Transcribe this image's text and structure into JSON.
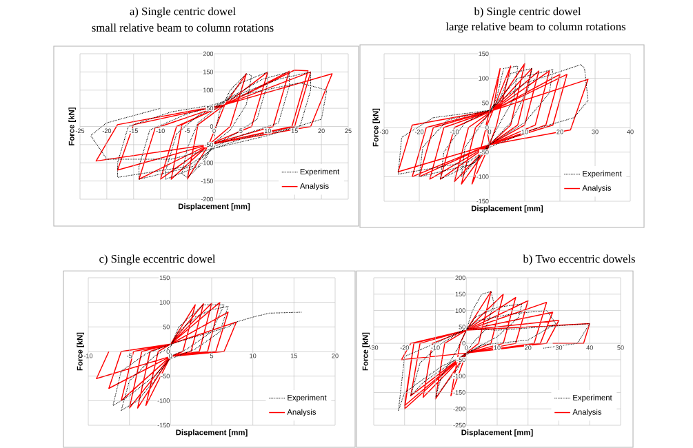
{
  "chart_data": [
    {
      "type": "line",
      "title": "a) Single centric dowel",
      "subtitle": "small relative beam to column rotations",
      "xlabel": "Displacement [mm]",
      "ylabel": "Force [kN]",
      "xlim": [
        -25,
        25
      ],
      "ylim": [
        -200,
        200
      ],
      "xticks": [
        -25,
        -20,
        -15,
        -10,
        -5,
        0,
        5,
        10,
        15,
        20,
        25
      ],
      "yticks": [
        -200,
        -150,
        -100,
        -50,
        0,
        50,
        100,
        150,
        200
      ],
      "grid": true,
      "legend": "bottom right",
      "series": [
        {
          "name": "Experiment",
          "color": "#000000",
          "line_style": "dotted",
          "x": [
            0,
            1,
            3,
            6,
            7,
            6,
            3,
            0,
            -2,
            -5,
            -6,
            -5,
            -3,
            0,
            2,
            5,
            10,
            10,
            8,
            4,
            0,
            -3,
            -9,
            -9,
            -7,
            -3,
            0,
            3,
            9,
            14,
            14,
            12,
            5,
            0,
            -4,
            -14,
            -14,
            -12,
            -5,
            0,
            4,
            12,
            18,
            18,
            16,
            6,
            0,
            -5,
            -18,
            -18,
            -16,
            -8,
            0,
            6,
            16,
            21,
            20,
            10,
            0,
            -8,
            -20,
            -23,
            -20,
            -10
          ],
          "values": [
            -30,
            40,
            100,
            145,
            140,
            60,
            -10,
            -45,
            -100,
            -140,
            -130,
            -60,
            10,
            45,
            70,
            120,
            150,
            120,
            20,
            -20,
            -50,
            -110,
            -145,
            -120,
            -20,
            30,
            50,
            80,
            130,
            150,
            110,
            10,
            -25,
            -55,
            -110,
            -145,
            -110,
            -10,
            35,
            55,
            85,
            130,
            150,
            100,
            0,
            -30,
            -60,
            -110,
            -140,
            -100,
            0,
            40,
            60,
            90,
            120,
            100,
            20,
            -25,
            -60,
            -90,
            -90,
            -25,
            10,
            50
          ]
        },
        {
          "name": "Analysis",
          "color": "#ff0000",
          "line_style": "solid",
          "x": [
            -1,
            2,
            6,
            3,
            -1,
            -5,
            -3,
            2,
            10,
            7,
            -1,
            -8,
            -6,
            2,
            14,
            11,
            -1,
            -10,
            -7,
            2,
            15,
            17.5,
            14.5,
            -1,
            -14,
            -11,
            2,
            18,
            15,
            -1,
            -18,
            -15,
            2,
            22,
            18,
            -1,
            -22,
            -18,
            2
          ],
          "values": [
            -50,
            60,
            145,
            0,
            -50,
            -145,
            5,
            60,
            150,
            0,
            -50,
            -145,
            5,
            60,
            152,
            0,
            -50,
            -145,
            0,
            60,
            155,
            153,
            0,
            -50,
            -145,
            -5,
            60,
            150,
            0,
            -50,
            -120,
            5,
            60,
            145,
            0,
            -50,
            -95,
            5,
            60
          ]
        }
      ]
    },
    {
      "type": "line",
      "title": "b) Single centric dowel",
      "subtitle": "large relative beam to column rotations",
      "xlabel": "Displacement [mm]",
      "ylabel": "Force [kN]",
      "xlim": [
        -30,
        40
      ],
      "ylim": [
        -150,
        150
      ],
      "xticks": [
        -30,
        -20,
        -10,
        0,
        10,
        20,
        30,
        40
      ],
      "yticks": [
        -150,
        -100,
        -50,
        0,
        50,
        100,
        150
      ],
      "grid": true,
      "legend": "bottom right",
      "series": [
        {
          "name": "Experiment",
          "color": "#000000",
          "line_style": "dotted",
          "x": [
            0,
            2,
            4,
            8,
            7,
            3,
            0,
            -3,
            -8,
            -7,
            -3,
            0,
            3,
            6,
            12,
            11,
            6,
            0,
            -4,
            -14,
            -13,
            -7,
            0,
            3,
            8,
            18,
            17,
            10,
            0,
            -5,
            -20,
            -19,
            -12,
            0,
            4,
            10,
            26,
            27,
            28,
            24,
            12,
            0,
            -6,
            -26,
            -25,
            -16,
            0
          ],
          "values": [
            30,
            60,
            120,
            125,
            60,
            10,
            -30,
            -60,
            -100,
            -40,
            0,
            30,
            60,
            110,
            120,
            80,
            10,
            -35,
            -70,
            -105,
            -50,
            10,
            35,
            60,
            100,
            118,
            70,
            10,
            -35,
            -75,
            -100,
            -40,
            15,
            35,
            60,
            90,
            128,
            120,
            55,
            20,
            -5,
            -40,
            -70,
            -95,
            -20,
            20,
            35
          ]
        },
        {
          "name": "Analysis",
          "color": "#ff0000",
          "line_style": "solid",
          "x": [
            1,
            3,
            -1,
            0,
            -5,
            -1,
            1,
            6,
            2,
            0,
            -8,
            -4,
            1,
            10,
            6,
            0,
            -10,
            -6,
            1,
            12,
            8,
            0,
            -14,
            -10,
            1,
            14,
            10,
            0,
            -17,
            -13,
            1,
            17,
            13,
            0,
            -20,
            -16,
            1,
            20,
            16,
            0,
            -22,
            -18,
            1,
            22,
            18,
            0,
            -26,
            -22,
            1,
            28,
            23,
            0
          ],
          "values": [
            35,
            120,
            5,
            -35,
            -115,
            0,
            35,
            125,
            5,
            -35,
            -115,
            0,
            35,
            130,
            5,
            -35,
            -110,
            0,
            35,
            120,
            5,
            -35,
            -105,
            0,
            35,
            115,
            5,
            -35,
            -105,
            0,
            35,
            115,
            5,
            -35,
            -100,
            0,
            35,
            108,
            5,
            -35,
            -100,
            0,
            35,
            108,
            5,
            -35,
            -90,
            5,
            35,
            98,
            -5,
            -35
          ]
        }
      ]
    },
    {
      "type": "line",
      "title": "c) Single eccentric dowel",
      "xlabel": "Displacement [mm]",
      "ylabel": "Force [kN]",
      "xlim": [
        -10,
        20
      ],
      "ylim": [
        -150,
        150
      ],
      "xticks": [
        -10,
        -5,
        0,
        5,
        10,
        15,
        20
      ],
      "yticks": [
        -150,
        -100,
        -50,
        0,
        50,
        100,
        150
      ],
      "grid": true,
      "legend": "bottom right",
      "series": [
        {
          "name": "Experiment",
          "color": "#000000",
          "line_style": "dotted",
          "x": [
            0,
            1,
            3,
            4,
            6.5,
            5,
            2,
            0,
            -2,
            -4,
            -6,
            -5,
            -2,
            0,
            1,
            3,
            5,
            7,
            6,
            3,
            0,
            -2,
            -5,
            -7,
            -6,
            -3,
            0,
            2,
            5,
            7,
            8,
            10,
            12,
            16
          ],
          "values": [
            10,
            50,
            80,
            95,
            95,
            40,
            5,
            -10,
            -60,
            -100,
            -120,
            -60,
            -10,
            10,
            40,
            70,
            85,
            92,
            40,
            5,
            -15,
            -50,
            -90,
            -110,
            -40,
            -5,
            15,
            25,
            40,
            50,
            60,
            70,
            78,
            80
          ]
        },
        {
          "name": "Analysis",
          "color": "#ff0000",
          "line_style": "solid",
          "x": [
            0,
            3,
            1.5,
            0,
            -3,
            -1.5,
            0,
            4,
            2.5,
            0,
            -4,
            -2.5,
            0,
            5,
            3.5,
            0,
            -5,
            -3.5,
            0,
            6,
            4.5,
            0,
            -6,
            -4.5,
            0,
            7,
            5.5,
            0,
            -7.5,
            -6,
            0,
            8,
            6.5,
            0,
            -9,
            -7.5
          ],
          "values": [
            15,
            95,
            0,
            -10,
            -110,
            0,
            15,
            97,
            0,
            -10,
            -115,
            0,
            15,
            98,
            0,
            -10,
            -115,
            0,
            15,
            100,
            0,
            -10,
            -100,
            0,
            15,
            80,
            0,
            -10,
            -75,
            0,
            15,
            60,
            0,
            -10,
            -55,
            0
          ]
        }
      ]
    },
    {
      "type": "line",
      "title": "b) Two eccentric dowels",
      "xlabel": "Displacement [mm]",
      "ylabel": "Force [kN]",
      "xlim": [
        -30,
        50
      ],
      "ylim": [
        -250,
        200
      ],
      "xticks": [
        -30,
        -20,
        -10,
        0,
        10,
        20,
        30,
        40,
        50
      ],
      "yticks": [
        -250,
        -200,
        -150,
        -100,
        -50,
        0,
        50,
        100,
        150,
        200
      ],
      "grid": true,
      "legend": "bottom right",
      "series": [
        {
          "name": "Experiment",
          "color": "#000000",
          "line_style": "dotted",
          "x": [
            0,
            2,
            5,
            8,
            9,
            6,
            2,
            0,
            -3,
            -8,
            -10,
            -8,
            -3,
            0,
            3,
            10,
            18,
            17,
            10,
            0,
            -5,
            -14,
            -18,
            -15,
            -8,
            0,
            4,
            15,
            26,
            29,
            20,
            5,
            0,
            -8,
            -20,
            -22,
            -20,
            -10,
            0,
            10,
            25,
            32,
            40,
            36,
            25
          ],
          "values": [
            40,
            100,
            150,
            158,
            120,
            40,
            0,
            -30,
            -80,
            -140,
            -165,
            -100,
            -20,
            40,
            80,
            110,
            120,
            80,
            20,
            -30,
            -60,
            -120,
            -160,
            -60,
            0,
            45,
            70,
            90,
            100,
            60,
            10,
            -5,
            -35,
            -70,
            -150,
            -205,
            -40,
            0,
            45,
            40,
            50,
            55,
            60,
            0,
            -15
          ]
        },
        {
          "name": "Analysis",
          "color": "#ff0000",
          "line_style": "solid",
          "x": [
            0,
            8,
            4,
            0,
            -5,
            -2,
            0,
            12,
            8,
            0,
            -10,
            -7,
            0,
            16,
            12,
            0,
            -14,
            -11,
            0,
            20,
            16,
            0,
            -18,
            -15,
            0,
            26,
            22,
            0,
            -20,
            -17,
            0,
            28,
            24,
            0,
            -20,
            -17,
            0,
            30,
            26,
            0,
            -21,
            -18,
            0,
            40,
            38,
            28
          ],
          "values": [
            40,
            158,
            0,
            -30,
            -160,
            0,
            40,
            150,
            0,
            -30,
            -170,
            0,
            40,
            140,
            0,
            -30,
            -165,
            0,
            40,
            130,
            0,
            -30,
            -160,
            0,
            40,
            125,
            0,
            -30,
            -190,
            0,
            40,
            95,
            0,
            -30,
            -200,
            0,
            40,
            70,
            0,
            -30,
            -50,
            0,
            40,
            60,
            0,
            0
          ]
        }
      ]
    }
  ]
}
